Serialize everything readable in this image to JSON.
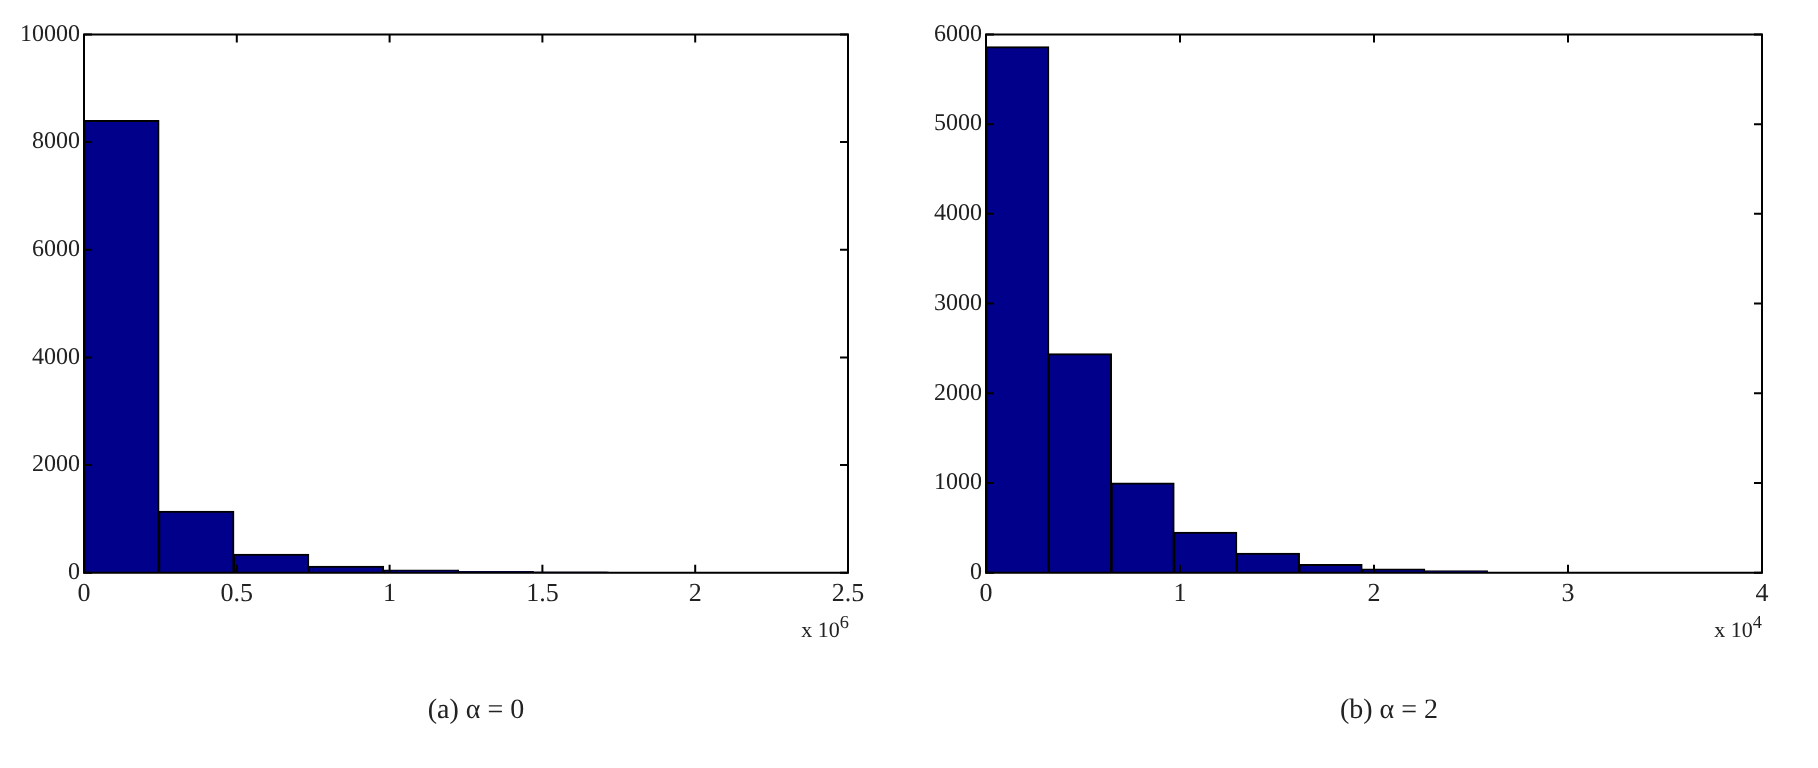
{
  "chart_data": [
    {
      "type": "histogram",
      "xlabel": "(a)  α = 0",
      "annotations": [
        "x 10$^{6}$"
      ],
      "bins": [
        0,
        0.245,
        0.49,
        0.735,
        0.98,
        1.225,
        1.47,
        1.715,
        1.96,
        2.205,
        2.45
      ],
      "values": [
        8400,
        1140,
        340,
        120,
        50,
        20,
        10,
        0,
        0,
        0
      ],
      "color": "#00008b",
      "xlim": [
        0,
        2.5
      ],
      "xticks": [
        0,
        0.5,
        1,
        1.5,
        2,
        2.5
      ],
      "ylim": [
        0,
        10000
      ],
      "yticks": [
        0,
        2000,
        4000,
        6000,
        8000,
        10000
      ],
      "grid": false
    },
    {
      "type": "histogram",
      "xlabel": "(b)  α = 2",
      "annotations": [
        "x 10$^{4}$"
      ],
      "bins": [
        0,
        0.323,
        0.646,
        0.969,
        1.292,
        1.615,
        1.938,
        2.261,
        2.584
      ],
      "values": [
        5860,
        2440,
        1000,
        450,
        215,
        90,
        40,
        20
      ],
      "color": "#00008b",
      "xlim": [
        0,
        4
      ],
      "xticks": [
        0,
        1,
        2,
        3,
        4
      ],
      "ylim": [
        0,
        6000
      ],
      "yticks": [
        0,
        1000,
        2000,
        3000,
        4000,
        5000,
        6000
      ],
      "grid": false
    }
  ]
}
